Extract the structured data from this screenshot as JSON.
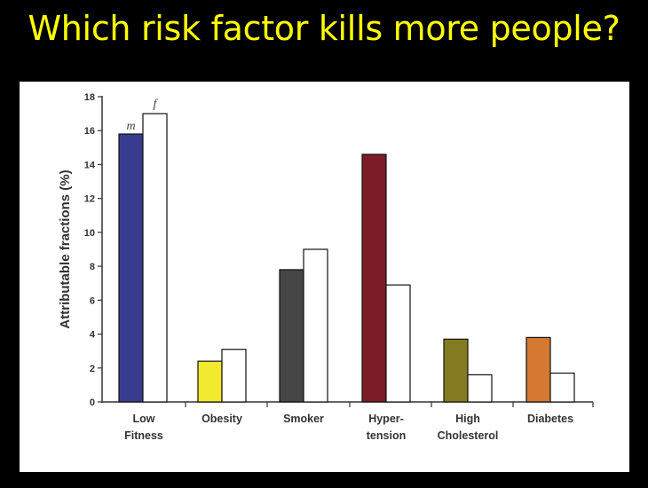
{
  "slide": {
    "title": "Which risk factor kills more people?"
  },
  "colors": {
    "title": "#ffff00",
    "background": "#000000",
    "panel": "#ffffff",
    "axis": "#333333",
    "female_fill": "#ffffff",
    "category_colors": [
      "#383c8f",
      "#f1ea2f",
      "#464646",
      "#7b1c27",
      "#857c21",
      "#d47832"
    ]
  },
  "chart_data": {
    "type": "bar",
    "title": "",
    "ylabel": "Attributable fractions (%)",
    "xlabel": "",
    "ylim": [
      0,
      18
    ],
    "yticks": [
      0,
      2,
      4,
      6,
      8,
      10,
      12,
      14,
      16,
      18
    ],
    "grid": false,
    "categories": [
      [
        "Low",
        "Fitness"
      ],
      [
        "Obesity"
      ],
      [
        "Smoker"
      ],
      [
        "Hyper-",
        "tension"
      ],
      [
        "High",
        "Cholesterol"
      ],
      [
        "Diabetes"
      ]
    ],
    "series": [
      {
        "name": "m",
        "values": [
          15.8,
          2.4,
          7.8,
          14.6,
          3.7,
          3.8
        ]
      },
      {
        "name": "f",
        "values": [
          17.0,
          3.1,
          9.0,
          6.9,
          1.6,
          1.7
        ]
      }
    ]
  }
}
